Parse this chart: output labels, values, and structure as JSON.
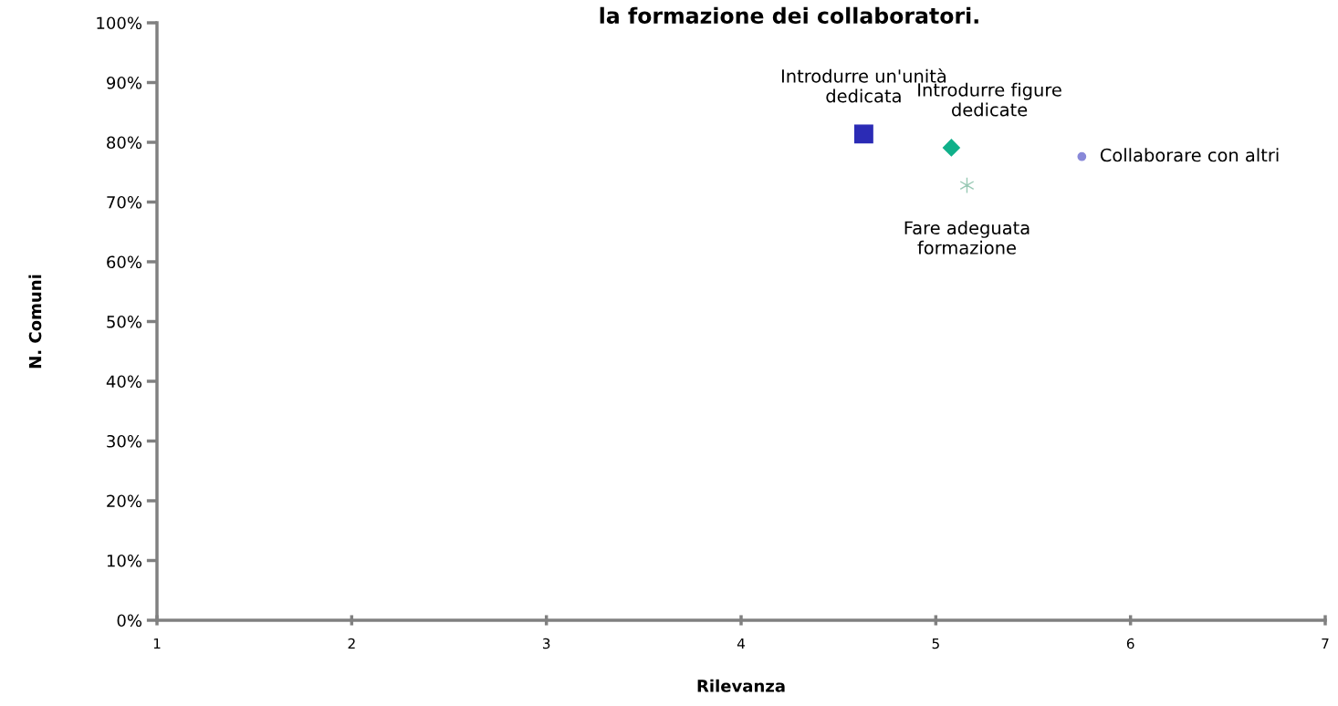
{
  "chart_data": {
    "type": "scatter",
    "title": "la formazione dei collaboratori.",
    "xlabel": "Rilevanza",
    "ylabel": "N. Comuni",
    "series": [
      {
        "name": "Introdurre un'unità\ndedicata",
        "color": "#2b2bb5",
        "marker": "square",
        "x": [
          4.63
        ],
        "values": [
          81.4
        ]
      },
      {
        "name": "Introdurre figure\ndedicate",
        "color": "#10b08a",
        "marker": "diamond",
        "x": [
          5.08
        ],
        "values": [
          79.1
        ]
      },
      {
        "name": "Fare adeguata\nformazione",
        "color": "#99c9b5",
        "marker": "cross",
        "x": [
          5.16
        ],
        "values": [
          72.8
        ]
      },
      {
        "name": "Collaborare con altri",
        "color": "#8888d8",
        "marker": "circle",
        "x": [
          5.75
        ],
        "values": [
          77.6
        ]
      }
    ],
    "xlim": [
      1,
      7
    ],
    "xticks": [
      1,
      2,
      3,
      4,
      5,
      6,
      7
    ],
    "ylim": [
      0,
      100
    ],
    "yticks": [
      {
        "value": 0,
        "label": "0%"
      },
      {
        "value": 10,
        "label": "10%"
      },
      {
        "value": 20,
        "label": "20%"
      },
      {
        "value": 30,
        "label": "30%"
      },
      {
        "value": 40,
        "label": "40%"
      },
      {
        "value": 50,
        "label": "50%"
      },
      {
        "value": 60,
        "label": "60%"
      },
      {
        "value": 70,
        "label": "70%"
      },
      {
        "value": 80,
        "label": "80%"
      },
      {
        "value": 90,
        "label": "90%"
      },
      {
        "value": 100,
        "label": "100%"
      }
    ],
    "grid": false,
    "legend": false
  }
}
